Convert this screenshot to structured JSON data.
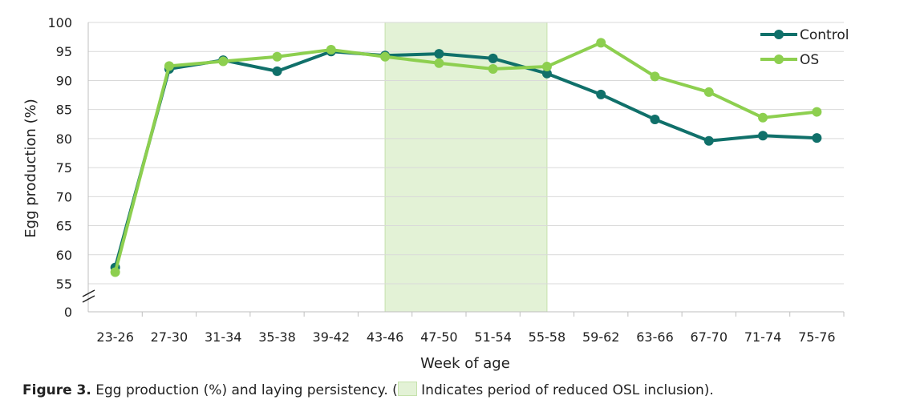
{
  "chart_data": {
    "type": "line",
    "xlabel": "Week of age",
    "ylabel": "Egg production (%)",
    "categories": [
      "23-26",
      "27-30",
      "31-34",
      "35-38",
      "39-42",
      "43-46",
      "47-50",
      "51-54",
      "55-58",
      "59-62",
      "63-66",
      "67-70",
      "71-74",
      "75-76"
    ],
    "y_ticks": [
      0,
      55,
      60,
      65,
      70,
      75,
      80,
      85,
      90,
      95,
      100
    ],
    "ylim": [
      50,
      100
    ],
    "axis_break": true,
    "grid": true,
    "legend_position": "top-right",
    "series": [
      {
        "name": "Control",
        "color": "#10706a",
        "values": [
          57.8,
          92.0,
          93.5,
          91.6,
          95.0,
          94.3,
          94.6,
          93.8,
          91.2,
          87.6,
          83.3,
          79.6,
          80.5,
          80.1
        ]
      },
      {
        "name": "OS",
        "color": "#8dcf4f",
        "values": [
          57.0,
          92.5,
          93.3,
          94.1,
          95.3,
          94.1,
          93.0,
          92.0,
          92.4,
          96.5,
          90.7,
          88.0,
          83.6,
          84.6
        ]
      }
    ],
    "highlight": {
      "from": "43-46",
      "to": "55-58",
      "color": "#e3f2d6"
    }
  },
  "caption": {
    "figure_label": "Figure 3.",
    "text_before": " Egg production (%) and laying persistency. (",
    "text_after": " Indicates period of reduced OSL inclusion)."
  }
}
